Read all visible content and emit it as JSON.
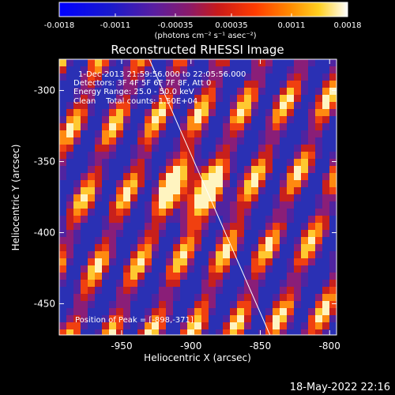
{
  "chart_data": {
    "type": "heatmap",
    "title": "Reconstructed RHESSI Image",
    "xlabel": "Heliocentric X (arcsec)",
    "ylabel": "Heliocentric Y (arcsec)",
    "xlim": [
      -995,
      -795
    ],
    "ylim": [
      -472,
      -278
    ],
    "xticks": [
      -950,
      -900,
      -850,
      -800
    ],
    "yticks": [
      -300,
      -350,
      -400,
      -450
    ],
    "colorbar": {
      "ticks": [
        "-0.0018",
        "-0.0011",
        "-0.00035",
        "0.00035",
        "0.0011",
        "0.0018"
      ],
      "tick_values": [
        -0.0018,
        -0.0011,
        -0.00035,
        0.00035,
        0.0011,
        0.0018
      ],
      "range": [
        -0.0018,
        0.0018
      ],
      "unit_label": "(photons cm⁻² s⁻¹ asec⁻²)"
    },
    "annotations": [
      "1-Dec-2013 21:59:56.000 to 22:05:56.000",
      "Detectors: 3F 4F 5F 6F 7F 8F, Att 0",
      "Energy Range: 25.0 - 50.0 keV",
      "Clean    Total counts: 1.50E+04"
    ],
    "peak": {
      "label": "Position of Peak = [-898,-371]",
      "x": -898,
      "y": -371
    },
    "limb_line": {
      "x": [
        -930,
        -843
      ],
      "y": [
        -278,
        -472
      ]
    },
    "date_stamp": "18-May-2022 22:16"
  }
}
